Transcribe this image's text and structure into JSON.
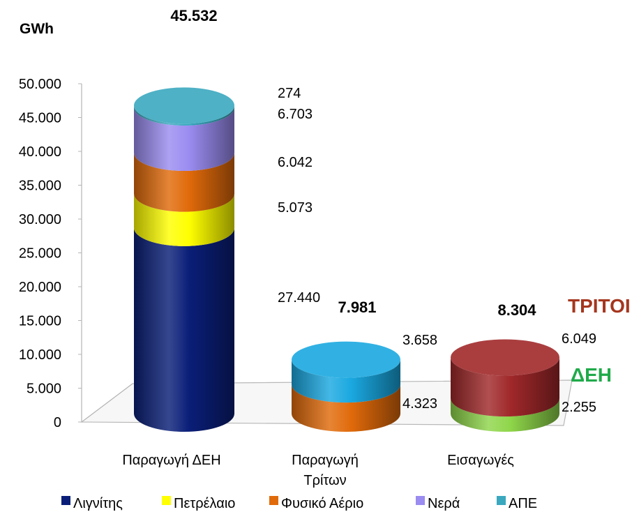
{
  "chart_data": {
    "type": "bar",
    "ylabel": "GWh",
    "ylim": [
      0,
      50000
    ],
    "y_ticks": [
      "0",
      "5.000",
      "10.000",
      "15.000",
      "20.000",
      "25.000",
      "30.000",
      "35.000",
      "40.000",
      "45.000",
      "50.000"
    ],
    "categories": [
      {
        "id": "deh",
        "label_lines": [
          "Παραγωγή ΔΕΗ"
        ]
      },
      {
        "id": "third",
        "label_lines": [
          "Παραγωγή",
          "Τρίτων"
        ]
      },
      {
        "id": "imports",
        "label_lines": [
          "Εισαγωγές"
        ]
      }
    ],
    "bars": [
      {
        "category": "deh",
        "total": 45532,
        "total_label": "45.532",
        "segments": [
          {
            "name": "Λιγνίτης",
            "value": 27440,
            "label": "27.440",
            "color": "#0a1e78"
          },
          {
            "name": "Πετρέλαιο",
            "value": 5073,
            "label": "5.073",
            "color": "#ffff00"
          },
          {
            "name": "Φυσικό Αέριο",
            "value": 6042,
            "label": "6.042",
            "color": "#e06a0a"
          },
          {
            "name": "Νερά",
            "value": 6703,
            "label": "6.703",
            "color": "#9a8cf0"
          },
          {
            "name": "ΑΠΕ",
            "value": 274,
            "label": "274",
            "color": "#3aa8bf"
          }
        ]
      },
      {
        "category": "third",
        "total": 7981,
        "total_label": "7.981",
        "segments": [
          {
            "name": "",
            "value": 4323,
            "label": "4.323",
            "color": "#e06a0a"
          },
          {
            "name": "",
            "value": 3658,
            "label": "3.658",
            "color": "#1aa8e0"
          }
        ]
      },
      {
        "category": "imports",
        "total": 8304,
        "total_label": "8.304",
        "segments": [
          {
            "name": "ΔΕΗ",
            "value": 2255,
            "label": "2.255",
            "color": "#8fd64a"
          },
          {
            "name": "ΤΡΙΤΟΙ",
            "value": 6049,
            "label": "6.049",
            "color": "#a0282a"
          }
        ]
      }
    ],
    "annotations": [
      {
        "text": "ΤΡΙΤΟΙ",
        "color": "#a5361e"
      },
      {
        "text": "ΔΕΗ",
        "color": "#1faa4a"
      }
    ],
    "legend": {
      "placement": "bottom",
      "items": [
        {
          "name": "Λιγνίτης",
          "color": "#0a1e78"
        },
        {
          "name": "Πετρέλαιο",
          "color": "#ffff00"
        },
        {
          "name": "Φυσικό Αέριο",
          "color": "#e06a0a"
        },
        {
          "name": "Νερά",
          "color": "#9a8cf0"
        },
        {
          "name": "ΑΠΕ",
          "color": "#3aa8bf"
        }
      ]
    },
    "grid": false
  }
}
